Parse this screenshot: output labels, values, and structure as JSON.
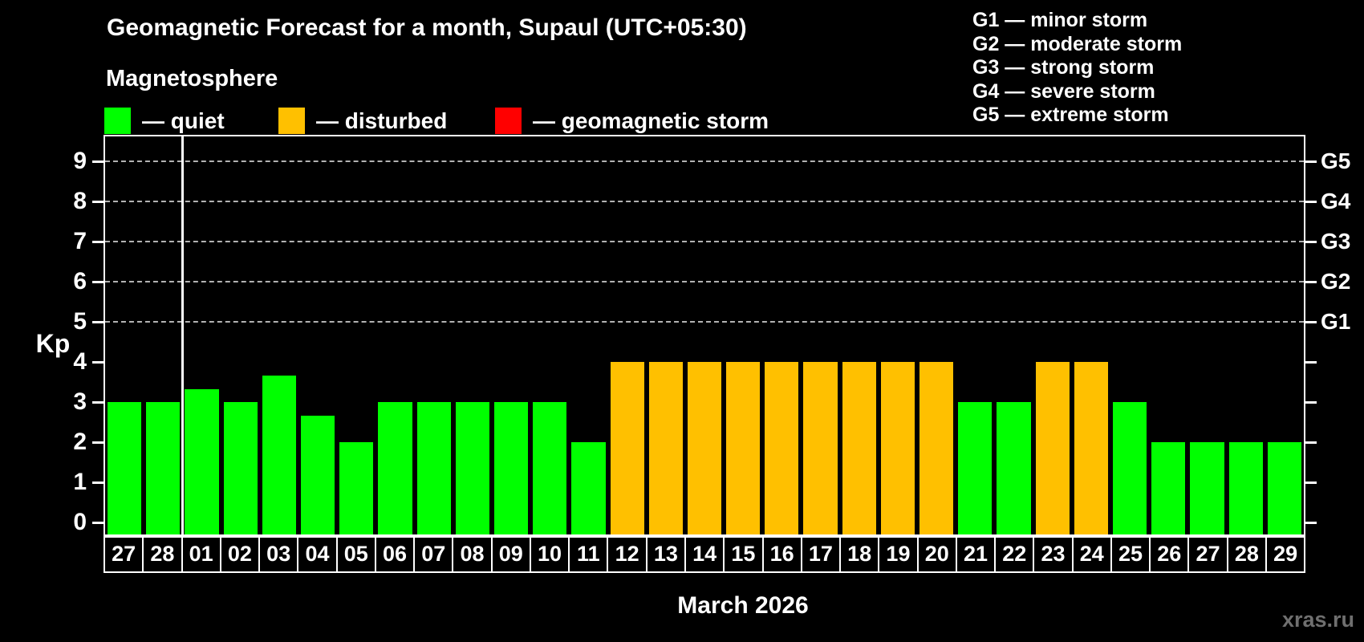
{
  "title": "Geomagnetic Forecast for a month, Supaul (UTC+05:30)",
  "subtitle": "Magnetosphere",
  "legend": {
    "items": [
      {
        "name": "quiet",
        "label": "— quiet",
        "color": "#00ff00"
      },
      {
        "name": "disturbed",
        "label": "— disturbed",
        "color": "#ffc000"
      },
      {
        "name": "storm",
        "label": "— geomagnetic storm",
        "color": "#ff0000"
      }
    ]
  },
  "g_legend": [
    "G1 — minor storm",
    "G2 — moderate storm",
    "G3 — strong storm",
    "G4 — severe storm",
    "G5 — extreme storm"
  ],
  "watermark": "xras.ru",
  "chart_data": {
    "type": "bar",
    "title": "Geomagnetic Forecast for a month, Supaul (UTC+05:30)",
    "ylabel": "Kp",
    "xlabel": "March 2026",
    "ylim": [
      0,
      9
    ],
    "yticks": [
      "0",
      "1",
      "2",
      "3",
      "4",
      "5",
      "6",
      "7",
      "8",
      "9"
    ],
    "grid": "dashed horizontal lines at Kp 5,6,7,8,9",
    "legend_position": "top-left",
    "right_axis": [
      {
        "kp": 5,
        "label": "G1"
      },
      {
        "kp": 6,
        "label": "G2"
      },
      {
        "kp": 7,
        "label": "G3"
      },
      {
        "kp": 8,
        "label": "G4"
      },
      {
        "kp": 9,
        "label": "G5"
      }
    ],
    "separator_after": 2,
    "categories": [
      "27",
      "28",
      "01",
      "02",
      "03",
      "04",
      "05",
      "06",
      "07",
      "08",
      "09",
      "10",
      "11",
      "12",
      "13",
      "14",
      "15",
      "16",
      "17",
      "18",
      "19",
      "20",
      "21",
      "22",
      "23",
      "24",
      "25",
      "26",
      "27",
      "28",
      "29"
    ],
    "values": [
      3,
      3,
      3.33,
      3,
      3.67,
      2.67,
      2,
      3,
      3,
      3,
      3,
      3,
      2,
      4,
      4,
      4,
      4,
      4,
      4,
      4,
      4,
      4,
      3,
      3,
      4,
      4,
      3,
      2,
      2,
      2,
      2
    ],
    "statuses": [
      "quiet",
      "quiet",
      "quiet",
      "quiet",
      "quiet",
      "quiet",
      "quiet",
      "quiet",
      "quiet",
      "quiet",
      "quiet",
      "quiet",
      "quiet",
      "disturbed",
      "disturbed",
      "disturbed",
      "disturbed",
      "disturbed",
      "disturbed",
      "disturbed",
      "disturbed",
      "disturbed",
      "quiet",
      "quiet",
      "disturbed",
      "disturbed",
      "quiet",
      "quiet",
      "quiet",
      "quiet",
      "quiet"
    ],
    "status_colors": {
      "quiet": "#00ff00",
      "disturbed": "#ffc000",
      "storm": "#ff0000"
    }
  }
}
